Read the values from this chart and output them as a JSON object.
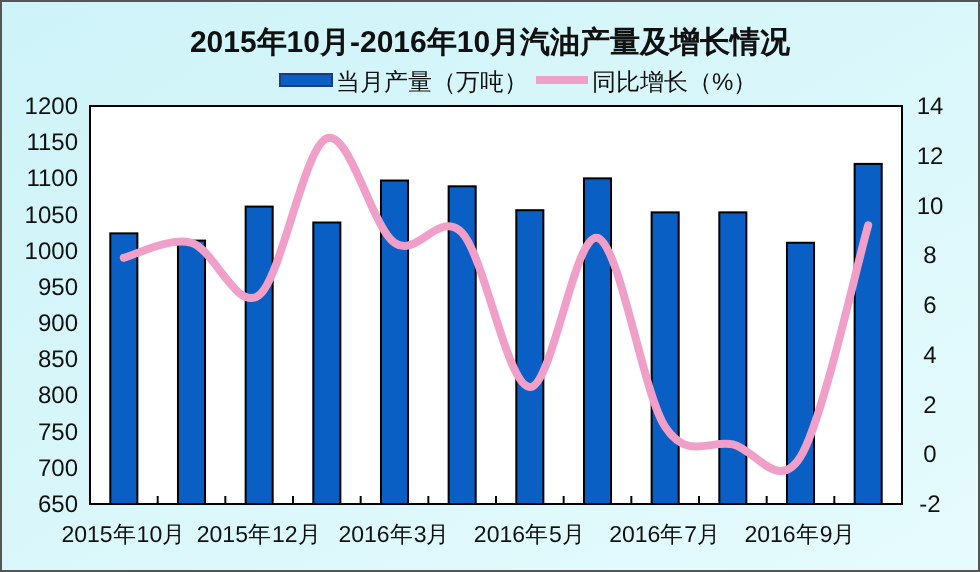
{
  "chart_data": {
    "type": "bar",
    "title": "2015年10月-2016年10月汽油产量及增长情况",
    "categories": [
      "2015年10月",
      null,
      "2015年12月",
      null,
      "2016年3月",
      null,
      "2016年5月",
      null,
      "2016年7月",
      null,
      "2016年9月",
      null
    ],
    "series": [
      {
        "name": "当月产量（万吨）",
        "color": "#0a5fc4",
        "values": [
          1024,
          1014,
          1061,
          1039,
          1097,
          1089,
          1056,
          1100,
          1053,
          1053,
          1011,
          1120
        ]
      },
      {
        "name": "同比增长（%）",
        "type": "line",
        "axis": "y2",
        "color": "#f0a0c8",
        "values": [
          7.9,
          8.5,
          6.4,
          12.7,
          8.5,
          8.9,
          2.7,
          8.7,
          1.1,
          0.4,
          -0.1,
          9.2
        ]
      }
    ],
    "ylim": [
      650,
      1200
    ],
    "yticks": [
      650,
      700,
      750,
      800,
      850,
      900,
      950,
      1000,
      1050,
      1100,
      1150,
      1200
    ],
    "y2lim": [
      -2,
      14
    ],
    "y2ticks": [
      -2,
      0,
      2,
      4,
      6,
      8,
      10,
      12,
      14
    ],
    "legend": "top",
    "grid": false,
    "line_style": "solid"
  }
}
